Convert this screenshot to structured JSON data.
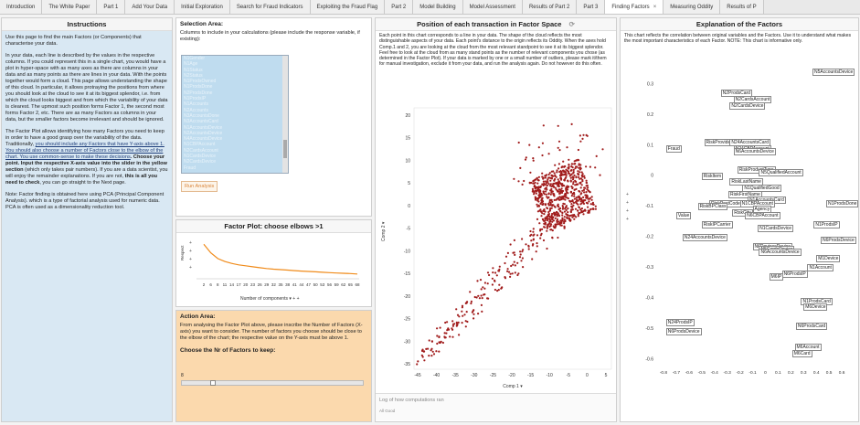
{
  "tabs": [
    {
      "label": "Introduction",
      "active": false
    },
    {
      "label": "The White Paper",
      "active": false
    },
    {
      "label": "Part 1",
      "active": false
    },
    {
      "label": "Add Your Data",
      "active": false
    },
    {
      "label": "Initial Exploration",
      "active": false
    },
    {
      "label": "Search for Fraud Indicators",
      "active": false
    },
    {
      "label": "Exploiting the Fraud Flag",
      "active": false
    },
    {
      "label": "Part 2",
      "active": false
    },
    {
      "label": "Model Building",
      "active": false
    },
    {
      "label": "Model Assessment",
      "active": false
    },
    {
      "label": "Results of Part 2",
      "active": false
    },
    {
      "label": "Part 3",
      "active": false
    },
    {
      "label": "Finding Factors",
      "active": true
    },
    {
      "label": "Measuring Oddity",
      "active": false
    },
    {
      "label": "Results of P",
      "active": false
    }
  ],
  "instructions": {
    "title": "Instructions",
    "p1": "Use this page to find the main Factors (or Components) that characterise your data.",
    "p2": "In your data, each line is described by the values in the respective columns. If you could represent this in a single chart, you would have a plot in hyper-space with as many axes as there are columns in your data and as many points as there are lines in your data. With the points together would form a cloud. This page allows understanding the shape of this cloud. In particular, it allows protraying the positions from where you should look at the cloud to see it at its biggest splendor, i.e. from which the cloud looks biggest and from which the variability of your data is clearest. The upmost such position forms Factor 1, the second most forms Factor 2, etc. There are as many Factors as columns in your data, but the smaller factors become irrelevant and should be ignored.",
    "p3a": "The Factor Plot allows identifying how many Factors you need to keep in order to have a good grasp over the variability of the data. Traditionally, ",
    "p3b": "you should include any Factors that have Y-axis above 1. You should also choose a number of Factors close to the elbow of the chart. You use common-sense to make these decisions",
    "p3c": ". Choose your point. Input the respective X-axis value into the slider in the yellow section",
    "p3d": " (which only takes pair numbers). If you are a data scientist, you will enjoy the remainder explanations. If you are not, ",
    "p3e": "this is all you need to check",
    "p3f": ", you can go straight to the Next page.",
    "p4": "Note: Factor finding is obtained here using PCA (Principal Component Analysis). which is a type of factorial analysis used for numeric data. PCA is often used as a dimensionality reduction tool."
  },
  "selection": {
    "title": "Selection Area:",
    "text": "Columns to include in your calculations (please include the response variable, if existing):",
    "items": [
      "N1Gender",
      "N1Age",
      "N1Status",
      "N2Status",
      "N1ProdsOwned",
      "N1ProdsDone",
      "N2ProdsDone",
      "N1ProdsIP",
      "N1Accounts",
      "N2Accounts",
      "N3AccountsDone",
      "N3AccountsCard",
      "N1AccountsDevice",
      "N2AccountsDevice",
      "N4AccountsDevice",
      "N1CBPAccount",
      "N2CardsAccount",
      "N1CardsDevice",
      "N2CardsDevice",
      "Fraud"
    ],
    "run_label": "Run Analysis"
  },
  "factor_plot": {
    "title": "Factor Plot: choose elbows >1",
    "ylabel": "Respect",
    "xticks": [
      "2",
      "6",
      "8",
      "11",
      "14",
      "17",
      "20",
      "23",
      "26",
      "29",
      "32",
      "35",
      "38",
      "41",
      "44",
      "47",
      "50",
      "53",
      "56",
      "59",
      "62",
      "65",
      "68"
    ],
    "xcontrol": "Number of components",
    "values": [
      3.6,
      2.7,
      2.1,
      1.8,
      1.6,
      1.45,
      1.35,
      1.25,
      1.15,
      1.07,
      1.0,
      0.95,
      0.9,
      0.85,
      0.8,
      0.76,
      0.72,
      0.68,
      0.64,
      0.6,
      0.57,
      0.54,
      0.5
    ]
  },
  "action": {
    "title": "Action Area:",
    "text": "From analysing the Factor Plot above, please inscribe the Number of Factors (X-axis) you want to consider. The number of factors you choose should be close to the elbow of the chart; the respective value on the Y-axis must be above 1.",
    "choose_label": "Choose the Nr of Factors to keep:",
    "slider_value": "8",
    "slider_fraction": 0.16
  },
  "scatter": {
    "title": "Position of each transaction in Factor Space",
    "text": "Each point in this chart corresponds to a line in your data. The shape of the cloud reflects the most distinguishable aspects of your data. Each point's distance to the origin reflects its Oddity. When the axes hold Comp.1 and 2, you are looking at the cloud from the most relevant standpoint to see it at its biggest splendor. Feel free to look at the cloud from as many stand points as the number of relevant components you chose (as determined in the Factor Plot). If your data is marked by one or a small number of outliers, please mark it/them for manual investigation, exclude it from your data, and run the analysis again. Do not however do this often.",
    "xcontrol": "Comp 1",
    "ycontrol": "Comp 2",
    "xticks": [
      "-45",
      "-40",
      "-35",
      "-30",
      "-25",
      "-20",
      "-15",
      "-10",
      "-5",
      "0",
      "5"
    ],
    "yticks": [
      "20",
      "15",
      "10",
      "5",
      "0",
      "-5",
      "-10",
      "-15",
      "-20",
      "-25",
      "-30",
      "-35"
    ],
    "log_placeholder": "Log of how computations ran",
    "log_status": "All Good"
  },
  "factors": {
    "title": "Explanation of the Factors",
    "text": "This chart reflects the correlation between original variables and the Factors. Use it to understand what makes the most important characteristics of each Factor. NOTE: This chart is informative only.",
    "yticks": [
      "0.3",
      "0.2",
      "0.1",
      "0",
      "-0.1",
      "-0.2",
      "-0.3",
      "-0.4",
      "-0.5",
      "-0.6"
    ],
    "xticks": [
      "-0.8",
      "-0.7",
      "-0.6",
      "-0.5",
      "-0.4",
      "-0.3",
      "-0.2",
      "-0.1",
      "0",
      "0.1",
      "0.2",
      "0.3",
      "0.4",
      "0.5",
      "0.6"
    ],
    "labels": [
      {
        "text": "N5AccountsDevice",
        "x": 0.55,
        "y": 0.34
      },
      {
        "text": "N2ProdsCard",
        "x": -0.35,
        "y": 0.27
      },
      {
        "text": "N2CardsAccount",
        "x": -0.25,
        "y": 0.25
      },
      {
        "text": "N2CardsDevice",
        "x": -0.28,
        "y": 0.23
      },
      {
        "text": "RiskProvider",
        "x": -0.48,
        "y": 0.11
      },
      {
        "text": "N24AccountsCard",
        "x": -0.28,
        "y": 0.11
      },
      {
        "text": "Fraud",
        "x": -0.78,
        "y": 0.09
      },
      {
        "text": "N24CBPAccount",
        "x": -0.25,
        "y": 0.09
      },
      {
        "text": "N6AccountsDevice",
        "x": -0.25,
        "y": 0.08
      },
      {
        "text": "RiskProductType",
        "x": -0.22,
        "y": 0.02
      },
      {
        "text": "N5QualifiedAccount",
        "x": -0.05,
        "y": 0.01
      },
      {
        "text": "RiskItem",
        "x": -0.5,
        "y": 0.0
      },
      {
        "text": "RiskLastName",
        "x": -0.28,
        "y": -0.02
      },
      {
        "text": "N1QualifiedGood",
        "x": -0.18,
        "y": -0.04
      },
      {
        "text": "RiskFirstName",
        "x": -0.29,
        "y": -0.06
      },
      {
        "text": "N1AccountsCard",
        "x": -0.14,
        "y": -0.08
      },
      {
        "text": "RiskPostCode",
        "x": -0.44,
        "y": -0.09
      },
      {
        "text": "N1CBPAccount",
        "x": -0.2,
        "y": -0.09
      },
      {
        "text": "N1ProdsDone",
        "x": 0.62,
        "y": -0.09
      },
      {
        "text": "RiskBPClass",
        "x": -0.53,
        "y": -0.1
      },
      {
        "text": "Agency",
        "x": -0.1,
        "y": -0.11
      },
      {
        "text": "RiskCity",
        "x": -0.26,
        "y": -0.12
      },
      {
        "text": "Value",
        "x": -0.7,
        "y": -0.13
      },
      {
        "text": "N6CBPAccount",
        "x": -0.16,
        "y": -0.13
      },
      {
        "text": "RiskIPCarrier",
        "x": -0.5,
        "y": -0.16
      },
      {
        "text": "N1ProdsIP",
        "x": 0.38,
        "y": -0.16
      },
      {
        "text": "N1CardsDevice",
        "x": -0.06,
        "y": -0.17
      },
      {
        "text": "N24AccountsDevice",
        "x": -0.65,
        "y": -0.2
      },
      {
        "text": "N6ProdsDevice",
        "x": 0.47,
        "y": -0.21
      },
      {
        "text": "N6DevicesDevice",
        "x": -0.1,
        "y": -0.23
      },
      {
        "text": "N5CardsDevice",
        "x": -0.05,
        "y": -0.24
      },
      {
        "text": "N6AccountsDevice",
        "x": -0.05,
        "y": -0.25
      },
      {
        "text": "M1Device",
        "x": 0.4,
        "y": -0.27
      },
      {
        "text": "N1Account",
        "x": 0.33,
        "y": -0.3
      },
      {
        "text": "N6ProdsIP",
        "x": 0.13,
        "y": -0.32
      },
      {
        "text": "M6IP",
        "x": 0.03,
        "y": -0.33
      },
      {
        "text": "N1ProdsCard",
        "x": 0.28,
        "y": -0.41
      },
      {
        "text": "M6Device",
        "x": 0.3,
        "y": -0.43
      },
      {
        "text": "N24ProdsIP",
        "x": -0.78,
        "y": -0.48
      },
      {
        "text": "N6ProdsCard",
        "x": 0.24,
        "y": -0.49
      },
      {
        "text": "N6ProdsDevice",
        "x": -0.78,
        "y": -0.51
      },
      {
        "text": "M6Account",
        "x": 0.23,
        "y": -0.56
      },
      {
        "text": "M6Card",
        "x": 0.21,
        "y": -0.58
      }
    ]
  },
  "colors": {
    "instructions_bg": "#d9e8f3",
    "action_bg": "#fbd9ad",
    "scatter_points": "#a11c1c",
    "factor_line": "#f08b1a"
  }
}
